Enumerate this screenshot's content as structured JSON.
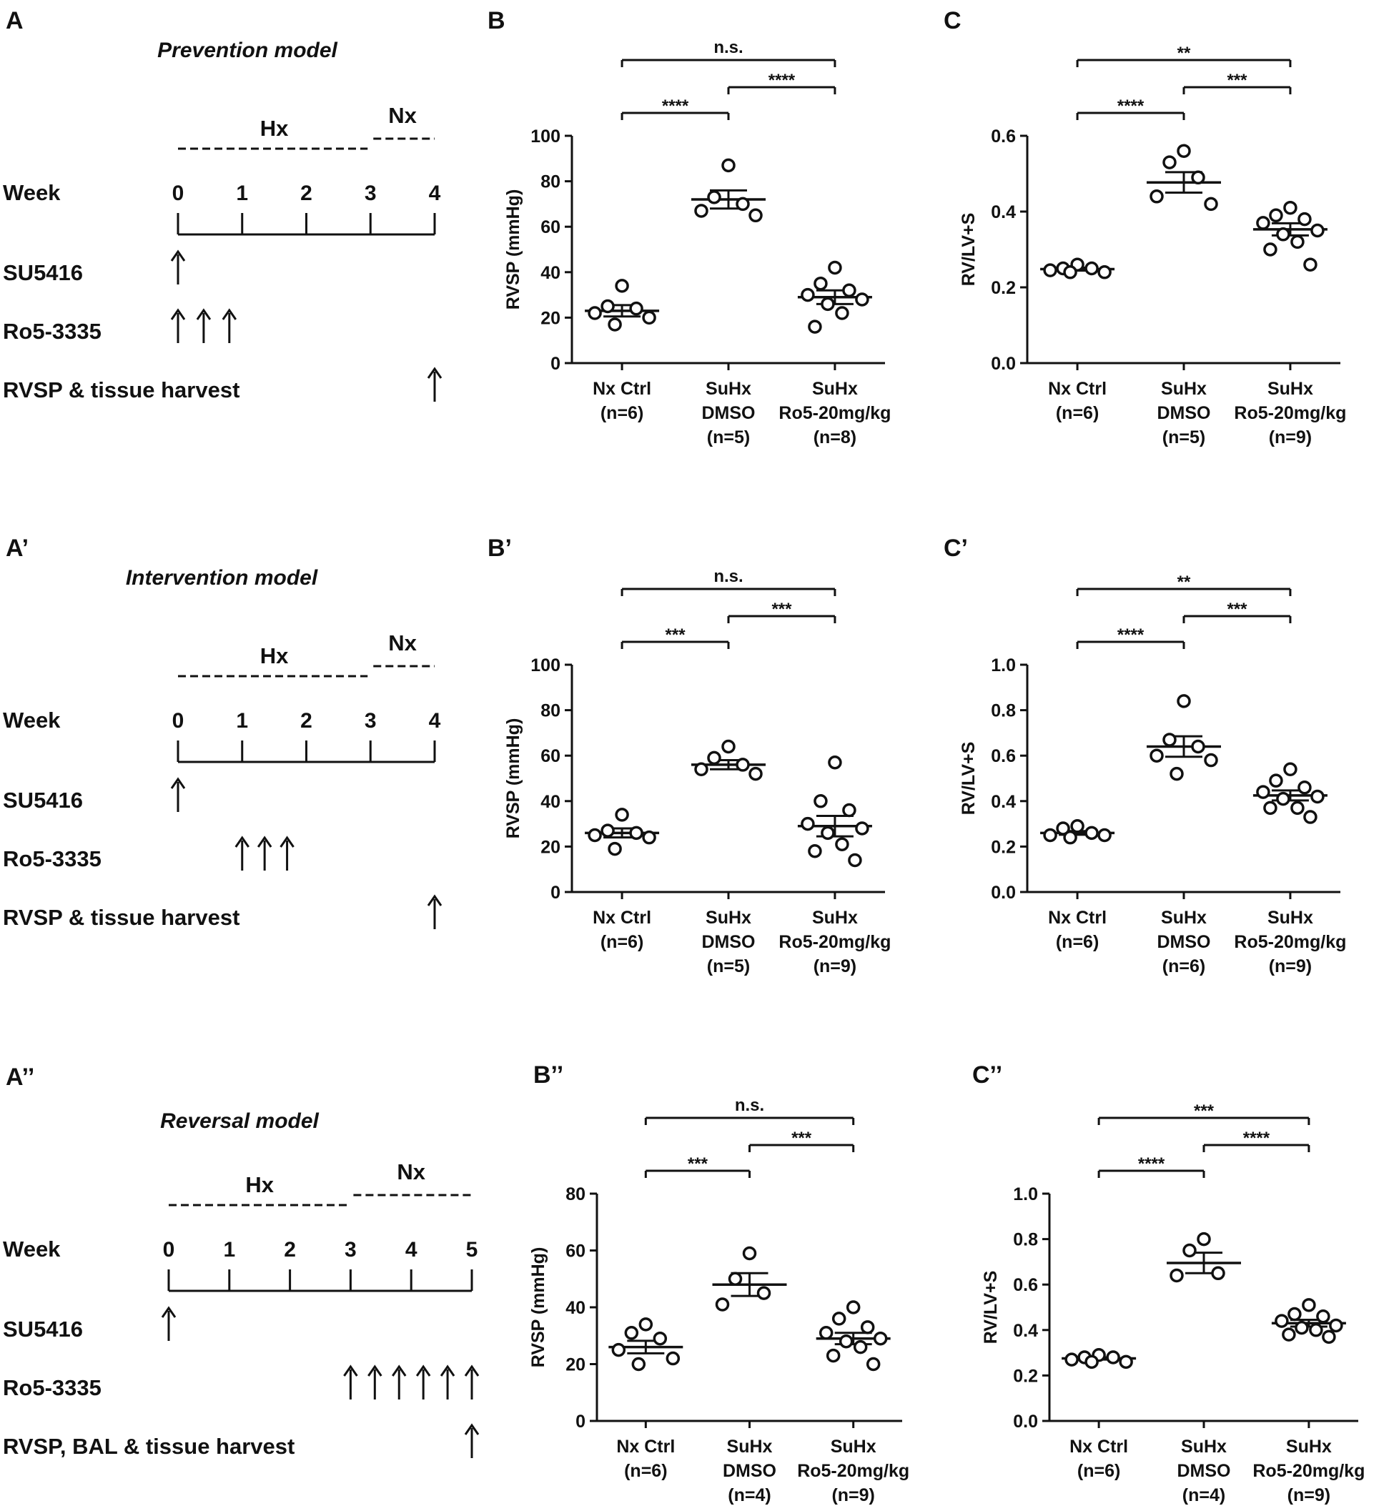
{
  "timelines": [
    {
      "panel": "A",
      "title": "Prevention model",
      "hx_label": "Hx",
      "nx_label": "Nx",
      "week_label": "Week",
      "weeks": [
        "0",
        "1",
        "2",
        "3",
        "4"
      ],
      "hx_weeks": [
        0,
        3
      ],
      "nx_weeks": [
        3,
        4
      ],
      "rows": [
        {
          "label": "SU5416",
          "arrow_weeks": [
            0
          ]
        },
        {
          "label": "Ro5-3335",
          "arrow_weeks": [
            0,
            0.4,
            0.8
          ]
        },
        {
          "label": "RVSP & tissue harvest",
          "arrow_weeks": [
            4
          ]
        }
      ]
    },
    {
      "panel": "A’",
      "title": "Intervention model",
      "hx_label": "Hx",
      "nx_label": "Nx",
      "week_label": "Week",
      "weeks": [
        "0",
        "1",
        "2",
        "3",
        "4"
      ],
      "hx_weeks": [
        0,
        3
      ],
      "nx_weeks": [
        3,
        4
      ],
      "rows": [
        {
          "label": "SU5416",
          "arrow_weeks": [
            0
          ]
        },
        {
          "label": "Ro5-3335",
          "arrow_weeks": [
            1,
            1.35,
            1.7
          ]
        },
        {
          "label": "RVSP & tissue harvest",
          "arrow_weeks": [
            4
          ]
        }
      ]
    },
    {
      "panel": "A’’",
      "title": "Reversal model",
      "hx_label": "Hx",
      "nx_label": "Nx",
      "week_label": "Week",
      "weeks": [
        "0",
        "1",
        "2",
        "3",
        "4",
        "5"
      ],
      "hx_weeks": [
        0,
        3
      ],
      "nx_weeks": [
        3,
        5
      ],
      "rows": [
        {
          "label": "SU5416",
          "arrow_weeks": [
            0
          ]
        },
        {
          "label": "Ro5-3335",
          "arrow_weeks": [
            3,
            3.4,
            3.8,
            4.2,
            4.6,
            5
          ]
        },
        {
          "label": "RVSP, BAL & tissue harvest",
          "arrow_weeks": [
            5
          ]
        }
      ]
    }
  ],
  "chart_data": [
    {
      "panel": "B",
      "type": "scatter",
      "ylabel": "RVSP (mmHg)",
      "ylim": [
        0,
        100
      ],
      "yticks": [
        0,
        20,
        40,
        60,
        80,
        100
      ],
      "categories": [
        {
          "lines": [
            "Nx Ctrl",
            "(n=6)"
          ],
          "points": [
            34,
            25,
            24,
            22,
            20,
            17
          ],
          "mean": 23,
          "sem": 2.5
        },
        {
          "lines": [
            "SuHx",
            "DMSO",
            "(n=5)"
          ],
          "points": [
            87,
            73,
            70,
            67,
            65
          ],
          "mean": 72,
          "sem": 4
        },
        {
          "lines": [
            "SuHx",
            "Ro5-20mg/kg",
            "(n=8)"
          ],
          "points": [
            42,
            35,
            32,
            30,
            28,
            26,
            22,
            16
          ],
          "mean": 29,
          "sem": 3
        }
      ],
      "comparisons": [
        {
          "from": 0,
          "to": 1,
          "label": "****",
          "level": 0
        },
        {
          "from": 1,
          "to": 2,
          "label": "****",
          "level": 1
        },
        {
          "from": 0,
          "to": 2,
          "label": "n.s.",
          "level": 2
        }
      ]
    },
    {
      "panel": "C",
      "type": "scatter",
      "ylabel": "RV/LV+S",
      "ylim": [
        0,
        0.6
      ],
      "yticks": [
        0.0,
        0.2,
        0.4,
        0.6
      ],
      "tick_decimals": 1,
      "categories": [
        {
          "lines": [
            "Nx Ctrl",
            "(n=6)"
          ],
          "points": [
            0.26,
            0.25,
            0.25,
            0.245,
            0.24,
            0.24
          ],
          "mean": 0.248,
          "sem": 0.004
        },
        {
          "lines": [
            "SuHx",
            "DMSO",
            "(n=5)"
          ],
          "points": [
            0.56,
            0.53,
            0.49,
            0.44,
            0.42
          ],
          "mean": 0.477,
          "sem": 0.027
        },
        {
          "lines": [
            "SuHx",
            "Ro5-20mg/kg",
            "(n=9)"
          ],
          "points": [
            0.41,
            0.39,
            0.38,
            0.37,
            0.35,
            0.34,
            0.32,
            0.3,
            0.26
          ],
          "mean": 0.353,
          "sem": 0.016
        }
      ],
      "comparisons": [
        {
          "from": 0,
          "to": 1,
          "label": "****",
          "level": 0
        },
        {
          "from": 1,
          "to": 2,
          "label": "***",
          "level": 1
        },
        {
          "from": 0,
          "to": 2,
          "label": "**",
          "level": 2
        }
      ]
    },
    {
      "panel": "B’",
      "type": "scatter",
      "ylabel": "RVSP (mmHg)",
      "ylim": [
        0,
        100
      ],
      "yticks": [
        0,
        20,
        40,
        60,
        80,
        100
      ],
      "categories": [
        {
          "lines": [
            "Nx Ctrl",
            "(n=6)"
          ],
          "points": [
            34,
            27,
            26,
            25,
            24,
            19
          ],
          "mean": 26,
          "sem": 2
        },
        {
          "lines": [
            "SuHx",
            "DMSO",
            "(n=5)"
          ],
          "points": [
            64,
            59,
            56,
            54,
            52
          ],
          "mean": 56,
          "sem": 2
        },
        {
          "lines": [
            "SuHx",
            "Ro5-20mg/kg",
            "(n=9)"
          ],
          "points": [
            57,
            40,
            36,
            30,
            28,
            26,
            21,
            18,
            14
          ],
          "mean": 29,
          "sem": 4.5
        }
      ],
      "comparisons": [
        {
          "from": 0,
          "to": 1,
          "label": "***",
          "level": 0
        },
        {
          "from": 1,
          "to": 2,
          "label": "***",
          "level": 1
        },
        {
          "from": 0,
          "to": 2,
          "label": "n.s.",
          "level": 2
        }
      ]
    },
    {
      "panel": "C’",
      "type": "scatter",
      "ylabel": "RV/LV+S",
      "ylim": [
        0,
        1.0
      ],
      "yticks": [
        0.0,
        0.2,
        0.4,
        0.6,
        0.8,
        1.0
      ],
      "tick_decimals": 1,
      "categories": [
        {
          "lines": [
            "Nx Ctrl",
            "(n=6)"
          ],
          "points": [
            0.29,
            0.28,
            0.26,
            0.25,
            0.25,
            0.24
          ],
          "mean": 0.26,
          "sem": 0.008
        },
        {
          "lines": [
            "SuHx",
            "DMSO",
            "(n=6)"
          ],
          "points": [
            0.84,
            0.67,
            0.64,
            0.6,
            0.58,
            0.52
          ],
          "mean": 0.64,
          "sem": 0.045
        },
        {
          "lines": [
            "SuHx",
            "Ro5-20mg/kg",
            "(n=9)"
          ],
          "points": [
            0.54,
            0.49,
            0.46,
            0.44,
            0.42,
            0.41,
            0.37,
            0.37,
            0.33
          ],
          "mean": 0.425,
          "sem": 0.022
        }
      ],
      "comparisons": [
        {
          "from": 0,
          "to": 1,
          "label": "****",
          "level": 0
        },
        {
          "from": 1,
          "to": 2,
          "label": "***",
          "level": 1
        },
        {
          "from": 0,
          "to": 2,
          "label": "**",
          "level": 2
        }
      ]
    },
    {
      "panel": "B’’",
      "type": "scatter",
      "ylabel": "RVSP (mmHg)",
      "ylim": [
        0,
        80
      ],
      "yticks": [
        0,
        20,
        40,
        60,
        80
      ],
      "categories": [
        {
          "lines": [
            "Nx Ctrl",
            "(n=6)"
          ],
          "points": [
            34,
            31,
            29,
            25,
            22,
            20
          ],
          "mean": 26,
          "sem": 2.2
        },
        {
          "lines": [
            "SuHx",
            "DMSO",
            "(n=4)"
          ],
          "points": [
            59,
            50,
            45,
            41
          ],
          "mean": 48,
          "sem": 4
        },
        {
          "lines": [
            "SuHx",
            "Ro5-20mg/kg",
            "(n=9)"
          ],
          "points": [
            40,
            36,
            33,
            31,
            29,
            28,
            26,
            23,
            20
          ],
          "mean": 29,
          "sem": 2
        }
      ],
      "comparisons": [
        {
          "from": 0,
          "to": 1,
          "label": "***",
          "level": 0
        },
        {
          "from": 1,
          "to": 2,
          "label": "***",
          "level": 1
        },
        {
          "from": 0,
          "to": 2,
          "label": "n.s.",
          "level": 2
        }
      ]
    },
    {
      "panel": "C’’",
      "type": "scatter",
      "ylabel": "RV/LV+S",
      "ylim": [
        0,
        1.0
      ],
      "yticks": [
        0.0,
        0.2,
        0.4,
        0.6,
        0.8,
        1.0
      ],
      "tick_decimals": 1,
      "categories": [
        {
          "lines": [
            "Nx Ctrl",
            "(n=6)"
          ],
          "points": [
            0.29,
            0.28,
            0.28,
            0.27,
            0.26,
            0.26
          ],
          "mean": 0.275,
          "sem": 0.005
        },
        {
          "lines": [
            "SuHx",
            "DMSO",
            "(n=4)"
          ],
          "points": [
            0.8,
            0.75,
            0.65,
            0.64
          ],
          "mean": 0.695,
          "sem": 0.045
        },
        {
          "lines": [
            "SuHx",
            "Ro5-20mg/kg",
            "(n=9)"
          ],
          "points": [
            0.51,
            0.47,
            0.46,
            0.44,
            0.42,
            0.41,
            0.4,
            0.38,
            0.37
          ],
          "mean": 0.43,
          "sem": 0.015
        }
      ],
      "comparisons": [
        {
          "from": 0,
          "to": 1,
          "label": "****",
          "level": 0
        },
        {
          "from": 1,
          "to": 2,
          "label": "****",
          "level": 1
        },
        {
          "from": 0,
          "to": 2,
          "label": "***",
          "level": 2
        }
      ]
    }
  ]
}
